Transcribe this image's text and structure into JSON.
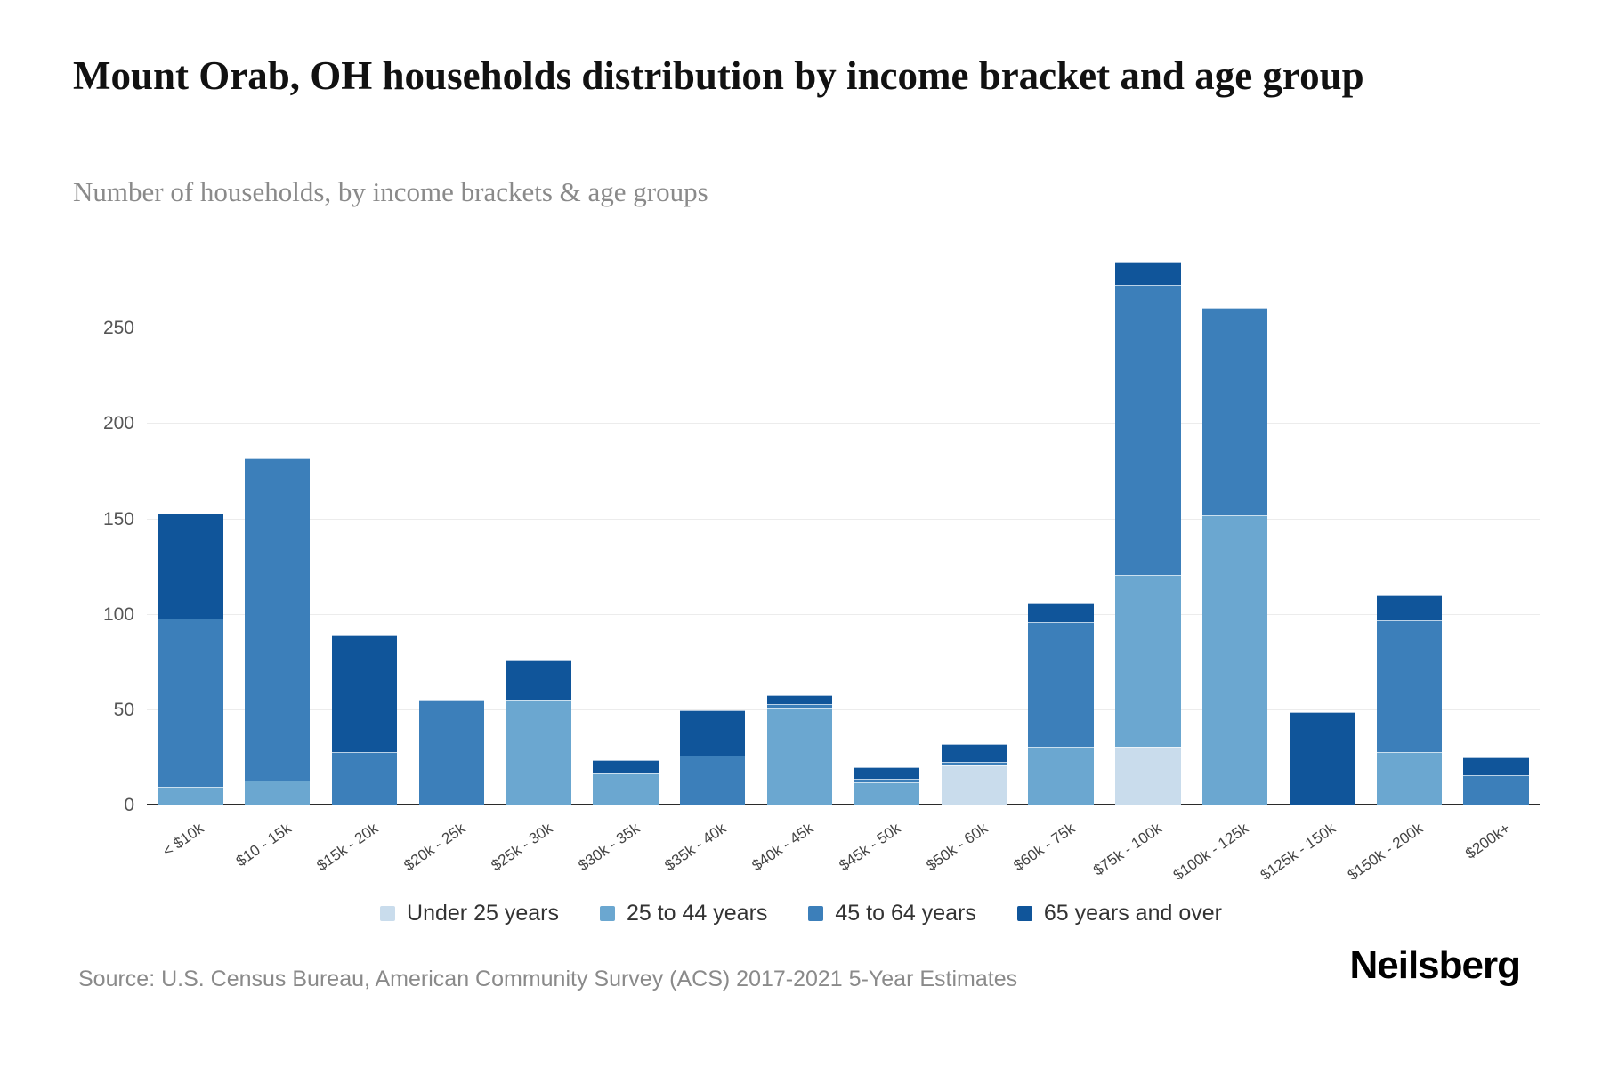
{
  "header": {
    "title": "Mount Orab, OH households distribution by income bracket and age group",
    "subtitle": "Number of households, by income brackets & age groups"
  },
  "footer": {
    "source": "Source: U.S. Census Bureau, American Community Survey (ACS) 2017-2021 5-Year Estimates",
    "logo": "Neilsberg"
  },
  "chart_data": {
    "type": "bar",
    "stacked": true,
    "title": "Mount Orab, OH households distribution by income bracket and age group",
    "xlabel": "",
    "ylabel": "Number of households",
    "categories": [
      "< $10k",
      "$10 - 15k",
      "$15k - 20k",
      "$20k - 25k",
      "$25k - 30k",
      "$30k - 35k",
      "$35k - 40k",
      "$40k - 45k",
      "$45k - 50k",
      "$50k - 60k",
      "$60k - 75k",
      "$75k - 100k",
      "$100k - 125k",
      "$125k - 150k",
      "$150k - 200k",
      "$200k+"
    ],
    "series": [
      {
        "name": "Under 25 years",
        "color": "#c9dcec",
        "values": [
          0,
          0,
          0,
          0,
          0,
          0,
          0,
          0,
          0,
          21,
          0,
          31,
          0,
          0,
          0,
          0
        ]
      },
      {
        "name": "25 to 44 years",
        "color": "#6ba7d0",
        "values": [
          10,
          13,
          0,
          0,
          55,
          17,
          0,
          51,
          12,
          0,
          31,
          90,
          152,
          0,
          28,
          0
        ]
      },
      {
        "name": "45 to 64 years",
        "color": "#3c7fba",
        "values": [
          88,
          169,
          28,
          55,
          0,
          0,
          26,
          2,
          2,
          2,
          65,
          152,
          109,
          0,
          69,
          16
        ]
      },
      {
        "name": "65 years and over",
        "color": "#10559a",
        "values": [
          55,
          0,
          61,
          0,
          21,
          7,
          24,
          5,
          6,
          9,
          10,
          12,
          0,
          49,
          13,
          9
        ]
      }
    ],
    "totals": [
      153,
      182,
      89,
      55,
      76,
      24,
      50,
      58,
      20,
      32,
      106,
      285,
      261,
      49,
      110,
      25
    ],
    "ylim": [
      0,
      287
    ],
    "yticks": [
      0,
      50,
      100,
      150,
      200,
      250
    ],
    "grid": true,
    "legend_position": "bottom"
  }
}
